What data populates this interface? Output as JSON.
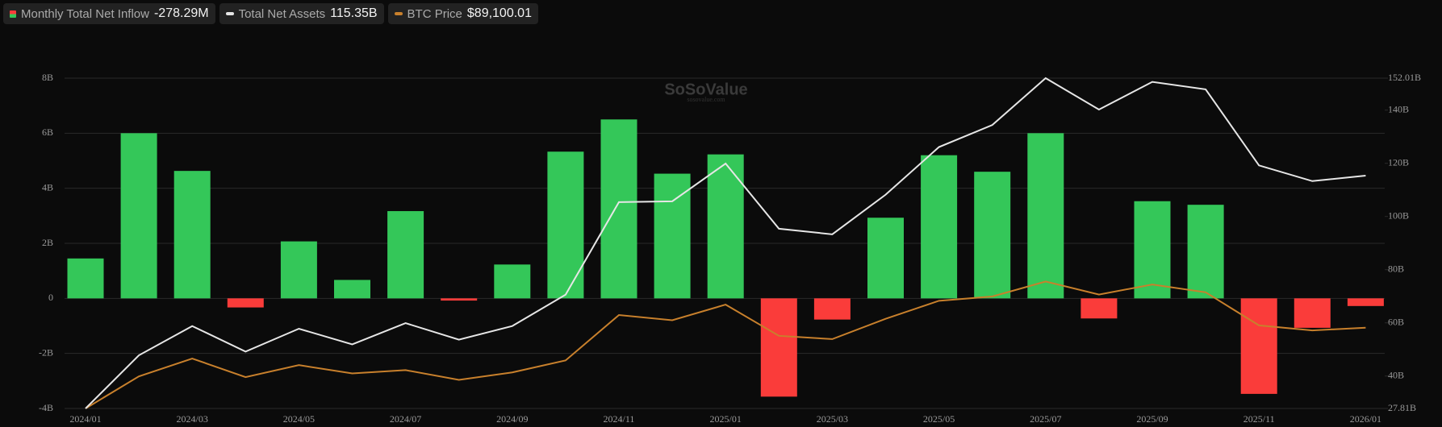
{
  "chart_data": {
    "type": "bar_line",
    "watermark": "SoSoValue",
    "watermark_sub": "sosovalue.com",
    "categories": [
      "2024/01",
      null,
      "2024/03",
      null,
      "2024/05",
      null,
      "2024/07",
      null,
      "2024/09",
      null,
      "2024/11",
      null,
      "2025/01",
      null,
      "2025/03",
      null,
      "2025/05",
      null,
      "2025/07",
      null,
      "2025/09",
      null,
      "2025/11",
      null,
      "2026/01"
    ],
    "series": [
      {
        "name": "Monthly Total Net Inflow",
        "header_value": "-278.29M",
        "type": "bar",
        "axis": "y",
        "color": "#34c759",
        "negative_color": "#fa3c3a",
        "values": [
          1.45,
          6.0,
          4.63,
          -0.33,
          2.07,
          0.67,
          3.17,
          -0.08,
          1.23,
          5.33,
          6.5,
          4.53,
          5.23,
          -3.57,
          -0.77,
          2.93,
          5.2,
          4.6,
          6.0,
          -0.73,
          3.53,
          3.4,
          -3.47,
          -1.07,
          -0.278
        ]
      },
      {
        "name": "Total Net Assets",
        "header_value": "115.35B",
        "type": "line",
        "axis": "y2",
        "color": "#e6e6e6",
        "values": [
          27.81,
          47.8,
          58.8,
          49.2,
          57.8,
          51.9,
          59.9,
          53.7,
          58.8,
          70.6,
          105.4,
          105.7,
          119.9,
          95.4,
          93.3,
          108.2,
          126.1,
          134.4,
          152.01,
          140.2,
          150.6,
          147.8,
          119.2,
          113.3,
          115.35
        ]
      },
      {
        "name": "BTC Price",
        "header_value": "$89,100.01",
        "type": "line",
        "axis": "y3",
        "color": "#c8802c",
        "values": [
          42500,
          61000,
          71300,
          60600,
          67500,
          62700,
          64600,
          59000,
          63300,
          70200,
          96400,
          93400,
          102400,
          84400,
          82500,
          94200,
          104600,
          107100,
          115700,
          108200,
          114000,
          109500,
          90400,
          87500,
          89100.01
        ]
      }
    ],
    "ylim": [
      -4,
      8
    ],
    "yticks": [
      {
        "value": -4,
        "label": "-4B"
      },
      {
        "value": -2,
        "label": "-2B"
      },
      0,
      {
        "value": 2,
        "label": "2B"
      },
      {
        "value": 4,
        "label": "4B"
      },
      {
        "value": 6,
        "label": "6B"
      },
      {
        "value": 8,
        "label": "8B"
      }
    ],
    "y2lim": [
      27.81,
      152.01
    ],
    "y2ticks": [
      {
        "value": 27.81,
        "label": "27.81B"
      },
      {
        "value": 40,
        "label": "40B"
      },
      {
        "value": 60,
        "label": "60B"
      },
      {
        "value": 80,
        "label": "80B"
      },
      {
        "value": 100,
        "label": "100B"
      },
      {
        "value": 120,
        "label": "120B"
      },
      {
        "value": 140,
        "label": "140B"
      },
      {
        "value": 152.01,
        "label": "152.01B"
      }
    ],
    "y3lim": [
      42500,
      233000
    ],
    "grid": true
  }
}
